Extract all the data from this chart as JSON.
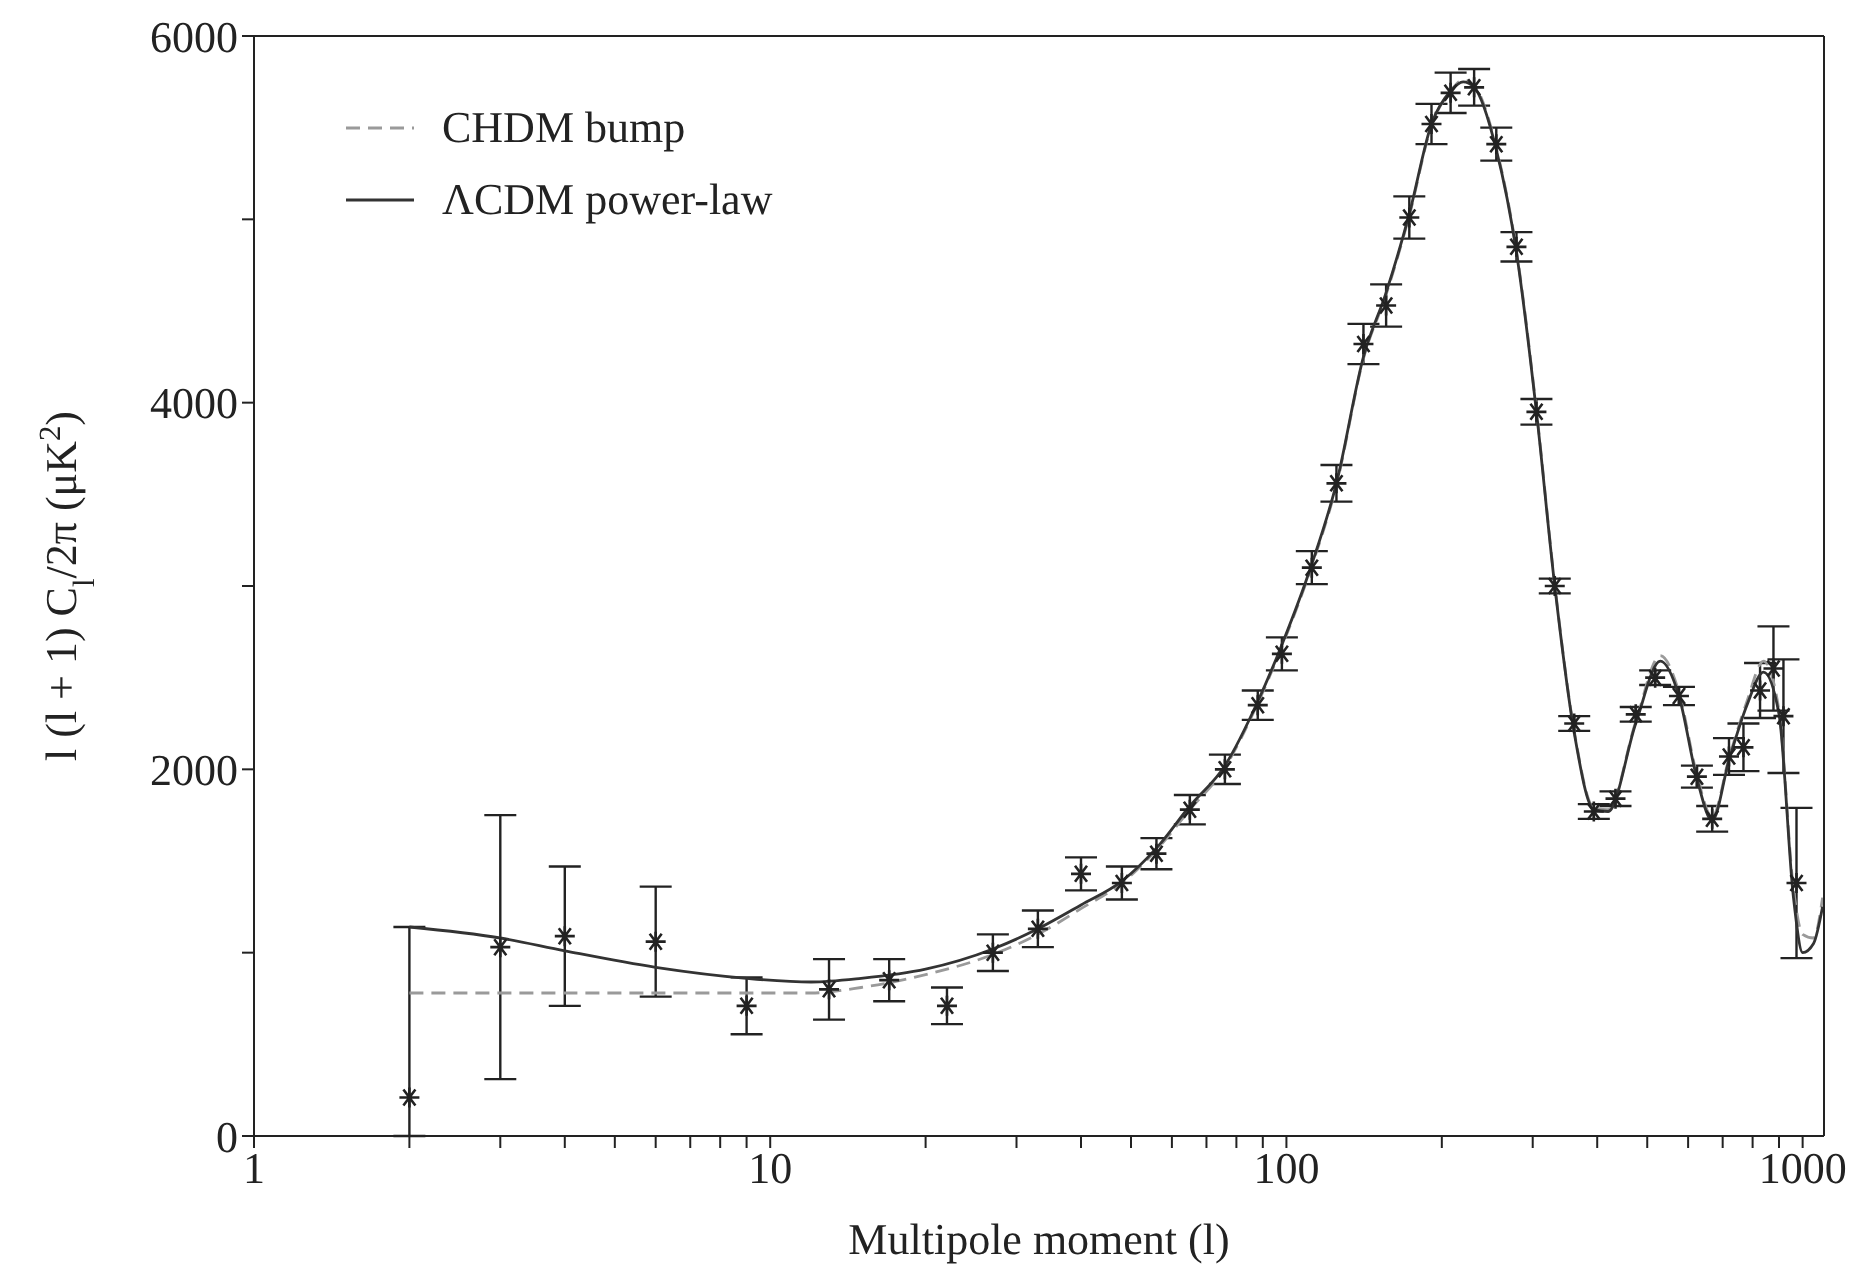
{
  "chart_data": {
    "type": "scatter",
    "xlabel": "Multipole moment (l)",
    "ylabel": "l (l + 1) C$_{l}$/2π (μK$^{2}$)",
    "log": "x",
    "xlim": [
      1,
      1100
    ],
    "ylim": [
      0,
      6000
    ],
    "xticks": [
      1,
      {
        "value": 2,
        "label": null
      },
      {
        "value": 3,
        "label": null
      },
      {
        "value": 4,
        "label": null
      },
      {
        "value": 5,
        "label": null
      },
      {
        "value": 6,
        "label": null
      },
      {
        "value": 7,
        "label": null
      },
      {
        "value": 8,
        "label": null
      },
      {
        "value": 9,
        "label": null
      },
      10,
      {
        "value": 20,
        "label": null
      },
      {
        "value": 30,
        "label": null
      },
      {
        "value": 40,
        "label": null
      },
      {
        "value": 50,
        "label": null
      },
      {
        "value": 60,
        "label": null
      },
      {
        "value": 70,
        "label": null
      },
      {
        "value": 80,
        "label": null
      },
      {
        "value": 90,
        "label": null
      },
      100,
      {
        "value": 200,
        "label": null
      },
      {
        "value": 300,
        "label": null
      },
      {
        "value": 400,
        "label": null
      },
      {
        "value": 500,
        "label": null
      },
      {
        "value": 600,
        "label": null
      },
      {
        "value": 700,
        "label": null
      },
      {
        "value": 800,
        "label": null
      },
      {
        "value": 900,
        "label": null
      },
      1000
    ],
    "yticks": [
      0,
      {
        "value": 1000,
        "label": null
      },
      2000,
      {
        "value": 3000,
        "label": null
      },
      4000,
      {
        "value": 5000,
        "label": null
      },
      6000
    ],
    "legend": "top left",
    "marker": "cross",
    "series": [
      {
        "color": "#222222",
        "x": [
          2,
          3,
          4,
          6,
          9,
          13,
          17,
          22,
          27,
          33,
          40,
          48,
          56,
          65,
          76,
          88,
          98,
          112,
          125,
          141,
          156,
          173,
          191,
          208,
          231,
          255,
          279,
          305,
          331,
          361,
          394,
          434,
          475,
          518,
          576,
          624,
          668,
          720,
          768,
          827,
          878,
          918,
          973
        ],
        "values": [
          210,
          1030,
          1090,
          1060,
          710,
          800,
          850,
          710,
          1000,
          1130,
          1430,
          1380,
          1540,
          1780,
          2000,
          2350,
          2630,
          3100,
          3560,
          4320,
          4530,
          5010,
          5520,
          5690,
          5720,
          5410,
          4850,
          3950,
          3000,
          2250,
          1770,
          1840,
          2300,
          2500,
          2400,
          1960,
          1730,
          2070,
          2120,
          2430,
          2550,
          2290,
          1380
        ],
        "errors": [
          [
            0,
            1140
          ],
          720,
          380,
          300,
          155,
          165,
          115,
          100,
          100,
          100,
          90,
          90,
          85,
          80,
          80,
          80,
          90,
          90,
          100,
          110,
          115,
          115,
          110,
          110,
          100,
          90,
          80,
          70,
          40,
          40,
          40,
          40,
          40,
          40,
          50,
          60,
          70,
          100,
          130,
          150,
          230,
          310,
          410
        ]
      },
      {
        "type": "line",
        "name": "CHDM bump",
        "color": "#9a9a9a",
        "line_style": "dashed",
        "marker": "none",
        "x": [
          2,
          4,
          6,
          9,
          12,
          15,
          20,
          27,
          33,
          40,
          48,
          56,
          65,
          76,
          88,
          98,
          112,
          125,
          141,
          156,
          173,
          191,
          208,
          220,
          231,
          255,
          279,
          305,
          331,
          361,
          394,
          420,
          475,
          530,
          576,
          624,
          668,
          720,
          780,
          840,
          900,
          960,
          1000,
          1050,
          1093
        ],
        "values": [
          780,
          780,
          780,
          780,
          780,
          810,
          880,
          990,
          1100,
          1240,
          1380,
          1560,
          1780,
          2010,
          2360,
          2670,
          3110,
          3550,
          4240,
          4590,
          5020,
          5510,
          5700,
          5760,
          5730,
          5390,
          4830,
          3960,
          3010,
          2210,
          1790,
          1780,
          2260,
          2620,
          2420,
          1970,
          1740,
          2060,
          2370,
          2590,
          2320,
          1350,
          1100,
          1080,
          1300
        ]
      },
      {
        "type": "line",
        "name": "ΛCDM power-law",
        "color": "#333333",
        "line_style": "solid",
        "marker": "none",
        "x": [
          2,
          3,
          4,
          6,
          9,
          12,
          15,
          20,
          27,
          33,
          40,
          48,
          56,
          65,
          76,
          88,
          98,
          112,
          125,
          141,
          156,
          173,
          191,
          208,
          220,
          231,
          255,
          279,
          305,
          331,
          361,
          394,
          420,
          475,
          530,
          576,
          624,
          668,
          720,
          780,
          840,
          900,
          960,
          1000,
          1050,
          1093
        ],
        "values": [
          1140,
          1080,
          1010,
          920,
          860,
          840,
          860,
          910,
          1020,
          1130,
          1260,
          1390,
          1570,
          1800,
          2020,
          2370,
          2680,
          3120,
          3560,
          4250,
          4600,
          5030,
          5520,
          5700,
          5750,
          5720,
          5380,
          4820,
          3950,
          3000,
          2200,
          1780,
          1770,
          2250,
          2590,
          2400,
          1950,
          1720,
          2050,
          2350,
          2530,
          2300,
          1300,
          1000,
          1050,
          1250
        ]
      }
    ]
  }
}
